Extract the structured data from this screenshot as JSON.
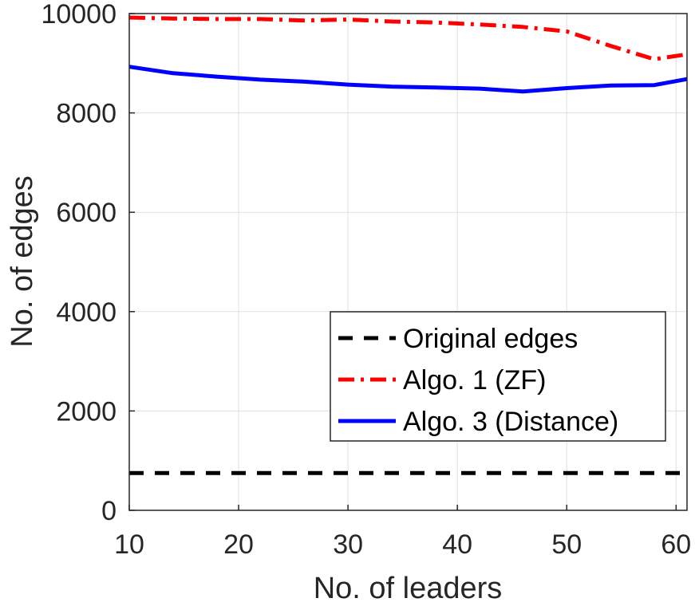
{
  "chart_data": {
    "type": "line",
    "xlabel": "No. of leaders",
    "ylabel": "No. of edges",
    "xlim": [
      10,
      61
    ],
    "ylim": [
      0,
      10000
    ],
    "xticks": [
      10,
      20,
      30,
      40,
      50,
      60
    ],
    "yticks": [
      0,
      2000,
      4000,
      6000,
      8000,
      10000
    ],
    "grid": true,
    "legend_position": "lower-right",
    "series": [
      {
        "name": "Original edges",
        "color": "#000000",
        "style": "dashed",
        "x": [
          10,
          61
        ],
        "y": [
          750,
          750
        ]
      },
      {
        "name": "Algo. 1 (ZF)",
        "color": "#ff0000",
        "style": "dashdot",
        "x": [
          10,
          14,
          18,
          22,
          26,
          30,
          34,
          38,
          42,
          46,
          50,
          54,
          58,
          61
        ],
        "y": [
          9920,
          9900,
          9890,
          9890,
          9860,
          9880,
          9840,
          9820,
          9780,
          9730,
          9640,
          9350,
          9080,
          9180
        ]
      },
      {
        "name": "Algo. 3 (Distance)",
        "color": "#0000ff",
        "style": "solid",
        "x": [
          10,
          14,
          18,
          22,
          26,
          30,
          34,
          38,
          42,
          46,
          50,
          54,
          58,
          61
        ],
        "y": [
          8930,
          8800,
          8730,
          8670,
          8630,
          8570,
          8530,
          8510,
          8490,
          8430,
          8500,
          8550,
          8560,
          8680
        ]
      }
    ]
  }
}
